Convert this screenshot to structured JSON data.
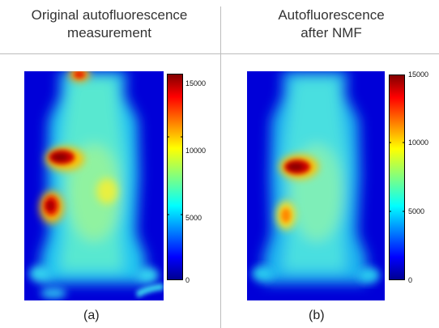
{
  "titles": {
    "left_line1": "Original autofluorescence",
    "left_line2": "measurement",
    "right_line1": "Autofluorescence",
    "right_line2": "after NMF"
  },
  "panel_a": {
    "caption": "(a)",
    "colorbar_ticks": [
      "15000",
      "10000",
      "5000",
      "0"
    ]
  },
  "panel_b": {
    "caption": "(b)",
    "colorbar_ticks": [
      "15000",
      "10000",
      "5000",
      "0"
    ]
  },
  "colors": {
    "jet_low": "#00008f",
    "jet_mid": "#80ff80",
    "jet_high": "#800000",
    "divider": "#bdbdbd"
  }
}
